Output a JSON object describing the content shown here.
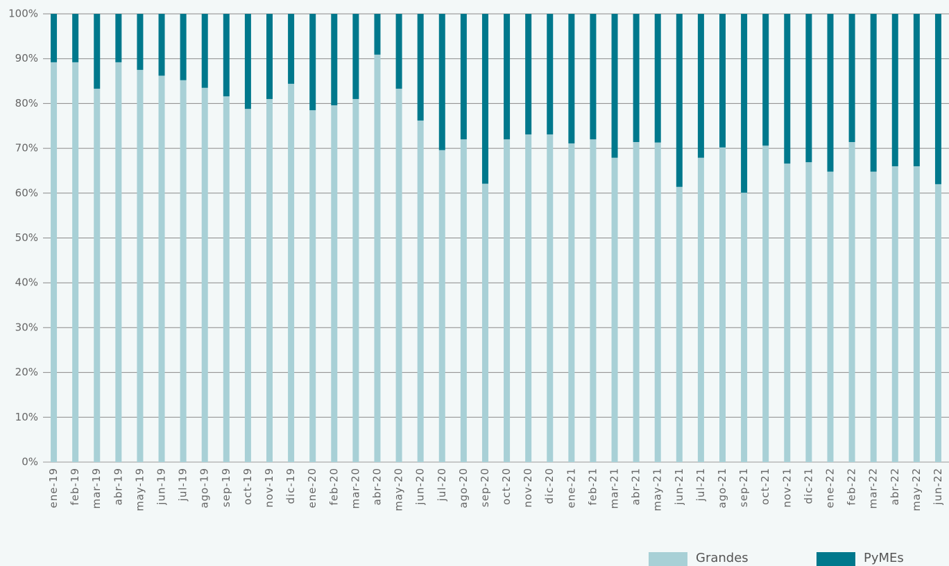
{
  "chart_data": {
    "type": "stacked_bar",
    "categories": [
      "ene-19",
      "feb-19",
      "mar-19",
      "abr-19",
      "may-19",
      "jun-19",
      "jul-19",
      "ago-19",
      "sep-19",
      "oct-19",
      "nov-19",
      "dic-19",
      "ene-20",
      "feb-20",
      "mar-20",
      "abr-20",
      "may-20",
      "jun-20",
      "jul-20",
      "ago-20",
      "sep-20",
      "oct-20",
      "nov-20",
      "dic-20",
      "ene-21",
      "feb-21",
      "mar-21",
      "abr-21",
      "may-21",
      "jun-21",
      "jul-21",
      "ago-21",
      "sep-21",
      "oct-21",
      "nov-21",
      "dic-21",
      "ene-22",
      "feb-22",
      "mar-22",
      "abr-22",
      "may-22",
      "jun-22"
    ],
    "series": [
      {
        "name": "Grandes",
        "color": "#a8d0d6",
        "values": [
          89.2,
          89.2,
          83.3,
          89.2,
          87.5,
          86.2,
          85.2,
          83.5,
          81.6,
          78.8,
          81.0,
          84.4,
          78.5,
          79.6,
          81.0,
          90.9,
          83.3,
          76.2,
          69.6,
          72.0,
          62.1,
          72.0,
          73.1,
          73.1,
          71.1,
          72.0,
          67.9,
          71.4,
          71.3,
          61.4,
          67.9,
          70.2,
          60.1,
          70.6,
          66.6,
          66.9,
          64.8,
          71.4,
          64.8,
          66.0,
          66.0,
          62.0
        ]
      },
      {
        "name": "PyMEs",
        "color": "#00788c",
        "values": [
          10.8,
          10.8,
          16.7,
          10.8,
          12.5,
          13.8,
          14.8,
          16.5,
          18.4,
          21.2,
          19.0,
          15.6,
          21.5,
          20.4,
          19.0,
          9.1,
          16.7,
          23.8,
          30.4,
          28.0,
          37.9,
          28.0,
          26.9,
          26.9,
          28.9,
          28.0,
          32.1,
          28.6,
          28.7,
          38.6,
          32.1,
          29.8,
          39.9,
          29.4,
          33.4,
          33.1,
          35.2,
          28.6,
          35.2,
          34.0,
          34.0,
          38.0
        ]
      }
    ],
    "ylim": [
      0,
      100
    ],
    "yticks": [
      {
        "value": 0,
        "label": "0%"
      },
      {
        "value": 10,
        "label": "10%"
      },
      {
        "value": 20,
        "label": "20%"
      },
      {
        "value": 30,
        "label": "30%"
      },
      {
        "value": 40,
        "label": "40%"
      },
      {
        "value": 50,
        "label": "50%"
      },
      {
        "value": 60,
        "label": "60%"
      },
      {
        "value": 70,
        "label": "70%"
      },
      {
        "value": 80,
        "label": "80%"
      },
      {
        "value": 90,
        "label": "90%"
      },
      {
        "value": 100,
        "label": "100%"
      }
    ],
    "grid": true
  }
}
